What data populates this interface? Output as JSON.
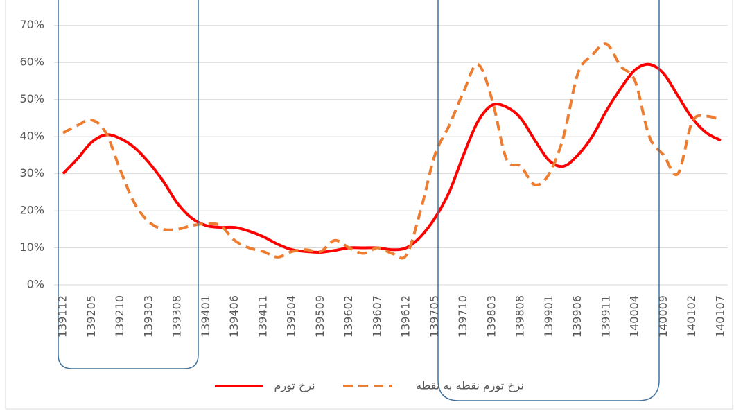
{
  "chart_data": {
    "type": "line",
    "categories": [
      "139112",
      null,
      "139205",
      null,
      "139210",
      null,
      "139303",
      null,
      "139308",
      null,
      "139401",
      null,
      "139406",
      null,
      "139411",
      null,
      "139504",
      null,
      "139509",
      null,
      "139602",
      null,
      "139607",
      null,
      "139612",
      null,
      "139705",
      null,
      "139710",
      null,
      "139803",
      null,
      "139808",
      null,
      "139901",
      null,
      "139906",
      null,
      "139911",
      null,
      "140004",
      null,
      "140009",
      null,
      "140102",
      null,
      "140107"
    ],
    "series": [
      {
        "name": "نرخ تورم",
        "color": "#ff0000",
        "dash": false,
        "values": [
          30,
          34,
          38.5,
          40.5,
          39.5,
          37,
          33,
          28,
          22,
          18,
          16,
          15.5,
          15.5,
          14.5,
          13,
          11,
          9.5,
          9,
          8.8,
          9.3,
          10,
          10,
          10,
          9.5,
          10,
          13,
          18,
          25,
          35,
          44,
          48.5,
          48,
          45,
          39,
          33.5,
          32,
          35,
          40,
          47,
          53,
          58,
          59.5,
          57,
          51,
          45,
          41,
          39
        ]
      },
      {
        "name": "نرخ تورم نقطه به نقطه",
        "color": "#ed7d31",
        "dash": true,
        "values": [
          41,
          43,
          44.5,
          41,
          31,
          22,
          17,
          15,
          15,
          16,
          16.5,
          16,
          12,
          10,
          9,
          7.5,
          9,
          9.5,
          9,
          12,
          10,
          8.5,
          10,
          8.5,
          8,
          20,
          35,
          43,
          52,
          59.5,
          50,
          34,
          32,
          27,
          30,
          40,
          57,
          62,
          65,
          59,
          55,
          40,
          35,
          30,
          44,
          45.5,
          44.5
        ]
      }
    ],
    "ylim": [
      0,
      75
    ],
    "yticks": [
      {
        "value": 0,
        "label": "0%"
      },
      {
        "value": 10,
        "label": "10%"
      },
      {
        "value": 20,
        "label": "20%"
      },
      {
        "value": 30,
        "label": "30%"
      },
      {
        "value": 40,
        "label": "40%"
      },
      {
        "value": 50,
        "label": "50%"
      },
      {
        "value": 60,
        "label": "60%"
      },
      {
        "value": 70,
        "label": "70%"
      }
    ],
    "grid": true,
    "legend": "bottom"
  }
}
